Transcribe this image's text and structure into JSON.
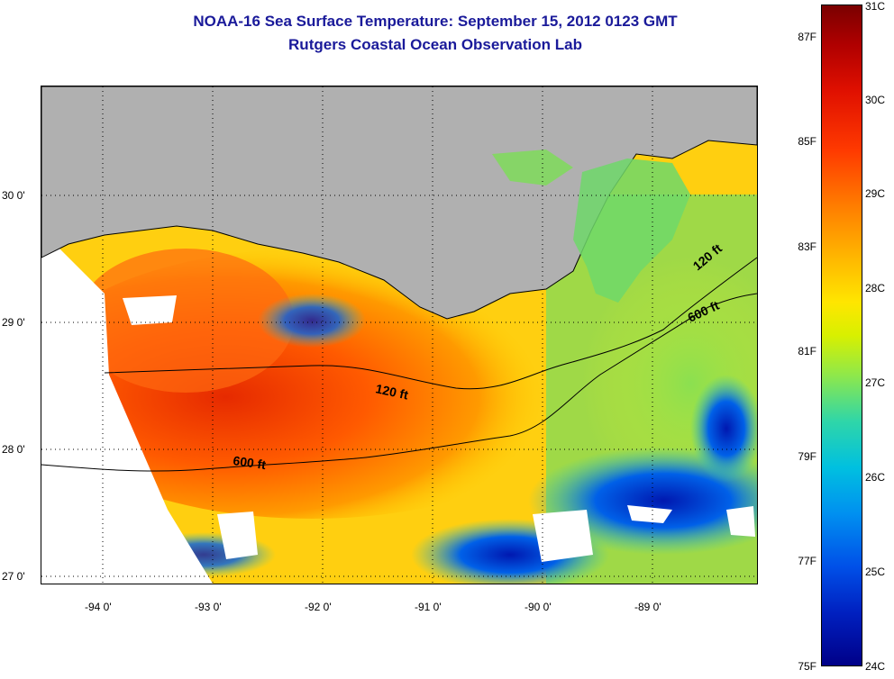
{
  "title": "NOAA-16 Sea Surface Temperature:  September 15, 2012 0123 GMT",
  "subtitle": "Rutgers Coastal Ocean Observation Lab",
  "map": {
    "lat_labels": [
      "30 0'",
      "29 0'",
      "28 0'",
      "27 0'"
    ],
    "lon_labels": [
      "-94 0'",
      "-93 0'",
      "-92 0'",
      "-91 0'",
      "-90 0'",
      "-89 0'"
    ],
    "contours": [
      "120 ft",
      "120 ft",
      "600 ft",
      "600 ft"
    ],
    "colors": {
      "land": "#b0b0b0",
      "cloud": "#ffffff",
      "warm": "#ff3a00",
      "cool": "#0020c0"
    }
  },
  "colorbar": {
    "celsius_labels": [
      "31C",
      "30C",
      "29C",
      "28C",
      "27C",
      "26C",
      "25C",
      "24C"
    ],
    "fahrenheit_labels": [
      "87F",
      "85F",
      "83F",
      "81F",
      "79F",
      "77F",
      "75F"
    ],
    "range_c": [
      24,
      31
    ]
  }
}
